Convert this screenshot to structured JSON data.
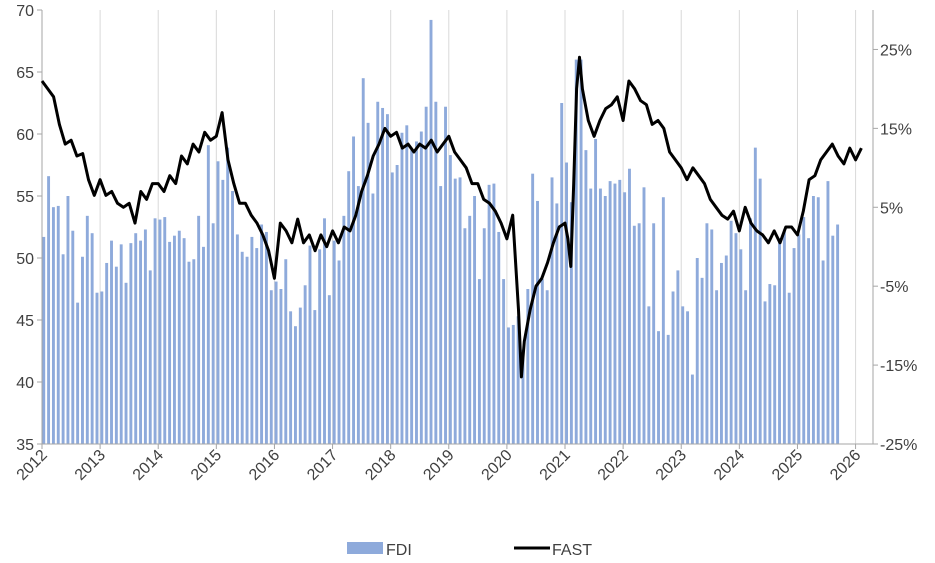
{
  "chart_data": {
    "type": "bar",
    "title": "",
    "xlabel": "",
    "ylabel": "",
    "ylim": [
      35,
      70
    ],
    "y2lim": [
      -25,
      30
    ],
    "y_ticks": [
      "35",
      "40",
      "45",
      "50",
      "55",
      "60",
      "65",
      "70"
    ],
    "y2_ticks": [
      "-25%",
      "-15%",
      "-5%",
      "5%",
      "15%",
      "25%"
    ],
    "x_ticks": [
      "2012",
      "2013",
      "2014",
      "2015",
      "2016",
      "2017",
      "2018",
      "2019",
      "2020",
      "2021",
      "2022",
      "2023",
      "2024",
      "2025",
      "2026"
    ],
    "x_range": [
      2012.0,
      2026.3
    ],
    "grid": "vertical",
    "legend": "bottom-center",
    "colors": {
      "fdi": "#8eaadb",
      "fast": "#000000",
      "axis": "#a6a6a6",
      "grid": "#d9d9d9"
    },
    "legend_items": [
      {
        "name": "FDI",
        "style": "bar"
      },
      {
        "name": "FAST",
        "style": "line"
      }
    ],
    "series": [
      {
        "name": "FDI",
        "type": "bar",
        "axis": "left",
        "start": 2012.0,
        "step": 0.0833,
        "values": [
          51.7,
          56.6,
          54.1,
          54.2,
          50.3,
          55.0,
          52.2,
          46.4,
          50.1,
          53.4,
          52.0,
          47.2,
          47.3,
          49.6,
          51.4,
          49.3,
          51.1,
          48.0,
          51.2,
          52.0,
          51.4,
          52.3,
          49.0,
          53.2,
          53.1,
          53.3,
          51.3,
          51.8,
          52.2,
          51.6,
          49.7,
          49.9,
          53.4,
          50.9,
          59.1,
          52.8,
          57.8,
          56.3,
          58.9,
          55.4,
          51.9,
          50.5,
          50.1,
          51.7,
          50.8,
          52.7,
          52.1,
          47.4,
          48.1,
          47.5,
          49.9,
          45.7,
          44.5,
          46.0,
          47.8,
          51.0,
          45.8,
          50.7,
          53.2,
          47.0,
          51.4,
          49.8,
          53.4,
          57.0,
          59.8,
          55.8,
          64.5,
          60.9,
          55.2,
          62.6,
          62.1,
          61.6,
          56.9,
          57.5,
          60.1,
          60.7,
          58.7,
          59.4,
          60.2,
          62.2,
          69.2,
          62.6,
          55.8,
          62.2,
          58.3,
          56.4,
          56.5,
          52.4,
          53.4,
          55.0,
          48.3,
          52.4,
          55.9,
          56.0,
          52.1,
          48.3,
          44.4,
          44.6,
          45.3,
          42.6,
          47.5,
          56.8,
          54.6,
          48.3,
          47.4,
          56.5,
          54.4,
          62.5,
          57.7,
          54.5,
          66.0,
          66.0,
          58.7,
          55.6,
          59.6,
          55.6,
          55.0,
          56.2,
          56.0,
          56.3,
          55.3,
          57.2,
          52.6,
          52.8,
          55.7,
          46.1,
          52.8,
          44.1,
          54.9,
          43.8,
          47.3,
          49.0,
          46.1,
          45.7,
          40.6,
          50.0,
          48.4,
          52.8,
          52.3,
          47.4,
          49.6,
          50.2,
          53.0,
          52.0,
          50.7,
          47.4,
          53.2,
          58.9,
          56.4,
          46.5,
          47.9,
          47.8,
          51.6,
          52.3,
          47.2,
          50.8,
          51.9,
          53.3,
          51.6,
          55.0,
          54.9,
          49.8,
          56.2,
          51.8,
          52.7
        ]
      },
      {
        "name": "FAST",
        "type": "line",
        "axis": "right",
        "points": [
          [
            2012.0,
            21.0
          ],
          [
            2012.1,
            20.0
          ],
          [
            2012.2,
            19.0
          ],
          [
            2012.3,
            15.5
          ],
          [
            2012.4,
            13.0
          ],
          [
            2012.5,
            13.5
          ],
          [
            2012.6,
            11.5
          ],
          [
            2012.7,
            11.8
          ],
          [
            2012.8,
            8.5
          ],
          [
            2012.9,
            6.5
          ],
          [
            2013.0,
            8.5
          ],
          [
            2013.1,
            6.5
          ],
          [
            2013.2,
            7.0
          ],
          [
            2013.3,
            5.5
          ],
          [
            2013.4,
            5.0
          ],
          [
            2013.5,
            5.5
          ],
          [
            2013.6,
            3.0
          ],
          [
            2013.7,
            7.0
          ],
          [
            2013.8,
            6.0
          ],
          [
            2013.9,
            8.0
          ],
          [
            2014.0,
            8.0
          ],
          [
            2014.1,
            7.0
          ],
          [
            2014.2,
            9.0
          ],
          [
            2014.3,
            8.0
          ],
          [
            2014.4,
            11.5
          ],
          [
            2014.5,
            10.5
          ],
          [
            2014.6,
            13.0
          ],
          [
            2014.7,
            12.0
          ],
          [
            2014.8,
            14.5
          ],
          [
            2014.9,
            13.5
          ],
          [
            2015.0,
            14.0
          ],
          [
            2015.1,
            17.0
          ],
          [
            2015.2,
            11.0
          ],
          [
            2015.3,
            8.0
          ],
          [
            2015.4,
            5.5
          ],
          [
            2015.5,
            5.5
          ],
          [
            2015.6,
            4.0
          ],
          [
            2015.7,
            3.0
          ],
          [
            2015.8,
            1.5
          ],
          [
            2015.9,
            -0.5
          ],
          [
            2016.0,
            -4.0
          ],
          [
            2016.1,
            3.0
          ],
          [
            2016.2,
            2.0
          ],
          [
            2016.3,
            0.5
          ],
          [
            2016.4,
            3.5
          ],
          [
            2016.5,
            0.5
          ],
          [
            2016.6,
            1.5
          ],
          [
            2016.7,
            -0.5
          ],
          [
            2016.8,
            1.5
          ],
          [
            2016.9,
            0.0
          ],
          [
            2017.0,
            2.0
          ],
          [
            2017.1,
            0.5
          ],
          [
            2017.2,
            2.5
          ],
          [
            2017.3,
            2.0
          ],
          [
            2017.4,
            4.0
          ],
          [
            2017.5,
            7.0
          ],
          [
            2017.6,
            9.0
          ],
          [
            2017.7,
            11.5
          ],
          [
            2017.8,
            13.0
          ],
          [
            2017.9,
            15.0
          ],
          [
            2018.0,
            14.0
          ],
          [
            2018.1,
            14.5
          ],
          [
            2018.2,
            12.5
          ],
          [
            2018.3,
            13.0
          ],
          [
            2018.4,
            12.0
          ],
          [
            2018.5,
            13.0
          ],
          [
            2018.6,
            12.5
          ],
          [
            2018.7,
            13.5
          ],
          [
            2018.8,
            12.0
          ],
          [
            2018.9,
            13.0
          ],
          [
            2019.0,
            14.0
          ],
          [
            2019.1,
            12.0
          ],
          [
            2019.2,
            11.0
          ],
          [
            2019.3,
            10.0
          ],
          [
            2019.4,
            8.0
          ],
          [
            2019.5,
            8.0
          ],
          [
            2019.6,
            6.0
          ],
          [
            2019.7,
            5.5
          ],
          [
            2019.8,
            4.5
          ],
          [
            2019.9,
            3.0
          ],
          [
            2020.0,
            1.0
          ],
          [
            2020.1,
            4.0
          ],
          [
            2020.15,
            -2.0
          ],
          [
            2020.2,
            -8.0
          ],
          [
            2020.25,
            -16.5
          ],
          [
            2020.3,
            -12.0
          ],
          [
            2020.4,
            -8.0
          ],
          [
            2020.5,
            -5.0
          ],
          [
            2020.6,
            -4.0
          ],
          [
            2020.7,
            -2.0
          ],
          [
            2020.8,
            0.5
          ],
          [
            2020.9,
            2.5
          ],
          [
            2021.0,
            3.0
          ],
          [
            2021.05,
            1.0
          ],
          [
            2021.1,
            -2.5
          ],
          [
            2021.15,
            8.0
          ],
          [
            2021.2,
            20.0
          ],
          [
            2021.25,
            24.0
          ],
          [
            2021.3,
            20.0
          ],
          [
            2021.4,
            16.0
          ],
          [
            2021.5,
            14.0
          ],
          [
            2021.6,
            16.0
          ],
          [
            2021.7,
            17.5
          ],
          [
            2021.8,
            18.0
          ],
          [
            2021.9,
            19.0
          ],
          [
            2022.0,
            16.0
          ],
          [
            2022.1,
            21.0
          ],
          [
            2022.2,
            20.0
          ],
          [
            2022.3,
            18.5
          ],
          [
            2022.4,
            18.0
          ],
          [
            2022.5,
            15.5
          ],
          [
            2022.6,
            16.0
          ],
          [
            2022.7,
            15.0
          ],
          [
            2022.8,
            12.0
          ],
          [
            2022.9,
            11.0
          ],
          [
            2023.0,
            10.0
          ],
          [
            2023.1,
            8.5
          ],
          [
            2023.2,
            10.0
          ],
          [
            2023.3,
            9.0
          ],
          [
            2023.4,
            8.0
          ],
          [
            2023.5,
            6.0
          ],
          [
            2023.6,
            5.0
          ],
          [
            2023.7,
            4.0
          ],
          [
            2023.8,
            3.5
          ],
          [
            2023.9,
            4.5
          ],
          [
            2024.0,
            2.0
          ],
          [
            2024.1,
            5.0
          ],
          [
            2024.2,
            3.0
          ],
          [
            2024.3,
            2.0
          ],
          [
            2024.4,
            1.5
          ],
          [
            2024.5,
            0.5
          ],
          [
            2024.6,
            2.0
          ],
          [
            2024.7,
            0.5
          ],
          [
            2024.8,
            2.5
          ],
          [
            2024.9,
            2.5
          ],
          [
            2025.0,
            1.5
          ],
          [
            2025.1,
            4.5
          ],
          [
            2025.2,
            8.5
          ],
          [
            2025.3,
            9.0
          ],
          [
            2025.4,
            11.0
          ],
          [
            2025.5,
            12.0
          ],
          [
            2025.6,
            13.0
          ],
          [
            2025.7,
            11.5
          ],
          [
            2025.8,
            10.5
          ],
          [
            2025.9,
            12.5
          ],
          [
            2026.0,
            11.0
          ],
          [
            2026.1,
            12.5
          ]
        ]
      }
    ]
  }
}
